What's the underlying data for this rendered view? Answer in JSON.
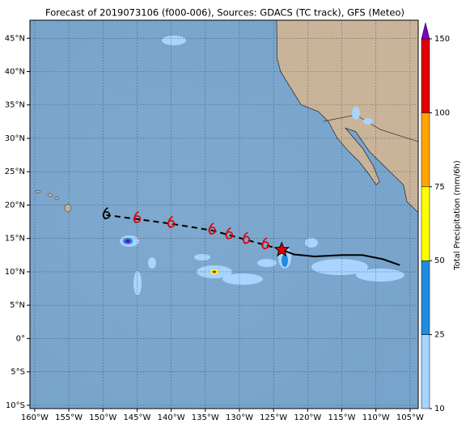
{
  "map": {
    "title": "Forecast of 2019073106 (f000-006), Sources: GDACS (TC track), GFS (Meteo)",
    "xlim": [
      -160.7,
      -103.8
    ],
    "ylim": [
      -10.5,
      47.7
    ],
    "xticks": [
      {
        "value": -160,
        "label": "160°W"
      },
      {
        "value": -155,
        "label": "155°W"
      },
      {
        "value": -150,
        "label": "150°W"
      },
      {
        "value": -145,
        "label": "145°W"
      },
      {
        "value": -140,
        "label": "140°W"
      },
      {
        "value": -135,
        "label": "135°W"
      },
      {
        "value": -130,
        "label": "130°W"
      },
      {
        "value": -125,
        "label": "125°W"
      },
      {
        "value": -120,
        "label": "120°W"
      },
      {
        "value": -115,
        "label": "115°W"
      },
      {
        "value": -110,
        "label": "110°W"
      },
      {
        "value": -105,
        "label": "105°W"
      }
    ],
    "yticks": [
      {
        "value": 45,
        "label": "45°N"
      },
      {
        "value": 40,
        "label": "40°N"
      },
      {
        "value": 35,
        "label": "35°N"
      },
      {
        "value": 30,
        "label": "30°N"
      },
      {
        "value": 25,
        "label": "25°N"
      },
      {
        "value": 20,
        "label": "20°N"
      },
      {
        "value": 15,
        "label": "15°N"
      },
      {
        "value": 10,
        "label": "10°N"
      },
      {
        "value": 5,
        "label": "5°N"
      },
      {
        "value": 0,
        "label": "0°"
      },
      {
        "value": -5,
        "label": "5°S"
      },
      {
        "value": -10,
        "label": "10°S"
      }
    ],
    "grid": true,
    "track": {
      "past": {
        "lon": [
          -123.8,
          -122,
          -119,
          -115,
          -112,
          -109,
          -106.5
        ],
        "lat": [
          13.3,
          12.6,
          12.3,
          12.5,
          12.5,
          11.9,
          11
        ],
        "color": "#000000"
      },
      "forecast": {
        "lon": [
          -123.8,
          -126.2,
          -129,
          -131.5,
          -134,
          -140,
          -145,
          -149.5
        ],
        "lat": [
          13.3,
          14,
          14.8,
          15.5,
          16.2,
          17.2,
          17.9,
          18.5
        ],
        "color": "#e00000"
      }
    },
    "current_position": {
      "lon": -123.8,
      "lat": 13.3,
      "color": "#e00000"
    },
    "colorbar": {
      "label": "Total Precipitation (mm/6h)",
      "ticks": [
        10,
        25,
        50,
        75,
        100,
        150
      ],
      "colors": [
        "#a8d4ff",
        "#1e8ce0",
        "#ffff00",
        "#ffa500",
        "#e00000"
      ],
      "extend_color": "#7a00c8"
    }
  }
}
